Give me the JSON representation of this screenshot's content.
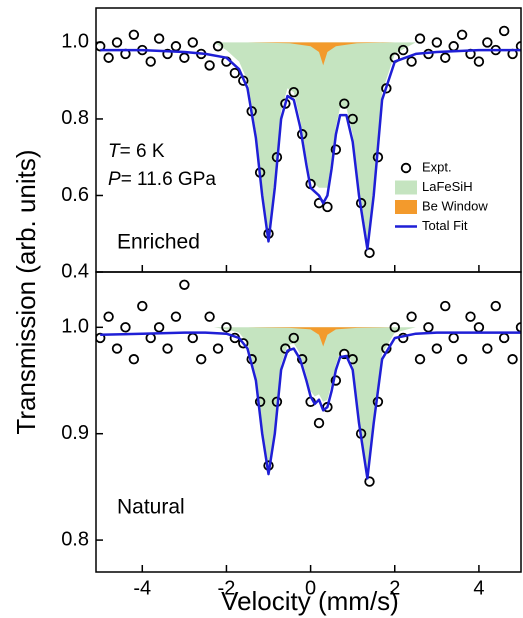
{
  "y_label": "Transmission (arb. units)",
  "x_label": "Velocity (mm/s)",
  "chart_data": [
    {
      "type": "mossbauer",
      "legend": "center right",
      "xlim": [
        -5.1,
        5
      ],
      "ylim": [
        0.4,
        1.09
      ],
      "yticks": [
        0.4,
        0.6,
        0.8,
        {
          "value": 1,
          "label": "1.0"
        }
      ],
      "annotations": [
        "T",
        "= 6 K",
        "P",
        "= 11.6 GPa",
        "Enriched"
      ],
      "series": [
        {
          "name": "Expt.",
          "kind": "scatter",
          "color": "#000000",
          "x": [
            -5,
            -4.8,
            -4.6,
            -4.4,
            -4.2,
            -4,
            -3.8,
            -3.6,
            -3.4,
            -3.2,
            -3,
            -2.8,
            -2.6,
            -2.4,
            -2.2,
            -2,
            -1.8,
            -1.6,
            -1.4,
            -1.2,
            -1,
            -0.8,
            -0.6,
            -0.4,
            -0.2,
            0,
            0.2,
            0.4,
            0.6,
            0.8,
            1,
            1.2,
            1.4,
            1.6,
            1.8,
            2,
            2.2,
            2.4,
            2.6,
            2.8,
            3,
            3.2,
            3.4,
            3.6,
            3.8,
            4,
            4.2,
            4.4,
            4.6,
            4.8,
            5
          ],
          "values": [
            0.99,
            0.96,
            1.0,
            0.97,
            1.02,
            0.98,
            0.95,
            1.01,
            0.97,
            0.99,
            0.96,
            1.0,
            0.97,
            0.94,
            0.99,
            0.95,
            0.92,
            0.9,
            0.82,
            0.66,
            0.5,
            0.7,
            0.84,
            0.87,
            0.76,
            0.63,
            0.58,
            0.57,
            0.72,
            0.84,
            0.8,
            0.58,
            0.45,
            0.7,
            0.88,
            0.96,
            0.98,
            0.95,
            1.01,
            0.97,
            1.0,
            0.96,
            0.99,
            1.02,
            0.97,
            0.95,
            1.0,
            0.98,
            1.03,
            0.97,
            0.99
          ]
        },
        {
          "name": "LaFeSiH",
          "kind": "area",
          "color": "#c5e4c0",
          "x": [
            -2.3,
            -2,
            -1.7,
            -1.5,
            -1.3,
            -1.15,
            -1,
            -0.85,
            -0.7,
            -0.55,
            -0.4,
            -0.25,
            -0.1,
            0,
            0.1,
            0.2,
            0.3,
            0.4,
            0.5,
            0.6,
            0.7,
            0.85,
            1,
            1.15,
            1.35,
            1.5,
            1.7,
            2,
            2.5
          ],
          "values": [
            1.0,
            0.98,
            0.95,
            0.9,
            0.77,
            0.62,
            0.5,
            0.64,
            0.82,
            0.88,
            0.87,
            0.8,
            0.7,
            0.64,
            0.63,
            0.62,
            0.62,
            0.62,
            0.69,
            0.78,
            0.83,
            0.83,
            0.76,
            0.62,
            0.48,
            0.62,
            0.87,
            0.97,
            1.0
          ]
        },
        {
          "name": "Be Window",
          "kind": "area",
          "color": "#f39a2c",
          "x": [
            -1.5,
            -0.5,
            0,
            0.2,
            0.3,
            0.4,
            0.6,
            1.1,
            2
          ],
          "values": [
            1.0,
            0.998,
            0.99,
            0.975,
            0.94,
            0.975,
            0.99,
            0.998,
            1.0
          ]
        },
        {
          "name": "Total Fit",
          "kind": "line",
          "color": "#1f1fd6",
          "x": [
            -5,
            -4,
            -3,
            -2.5,
            -2,
            -1.7,
            -1.5,
            -1.3,
            -1.15,
            -1,
            -0.85,
            -0.7,
            -0.55,
            -0.4,
            -0.25,
            -0.1,
            0,
            0.1,
            0.2,
            0.3,
            0.4,
            0.5,
            0.6,
            0.7,
            0.85,
            1,
            1.15,
            1.35,
            1.5,
            1.7,
            2,
            2.5,
            3,
            4,
            5
          ],
          "values": [
            0.98,
            0.98,
            0.975,
            0.97,
            0.96,
            0.93,
            0.88,
            0.75,
            0.6,
            0.48,
            0.62,
            0.8,
            0.86,
            0.85,
            0.78,
            0.68,
            0.62,
            0.61,
            0.6,
            0.58,
            0.6,
            0.67,
            0.76,
            0.81,
            0.81,
            0.74,
            0.6,
            0.46,
            0.6,
            0.85,
            0.95,
            0.97,
            0.975,
            0.98,
            0.98
          ]
        }
      ]
    },
    {
      "type": "mossbauer",
      "xlim": [
        -5.1,
        5
      ],
      "ylim": [
        0.77,
        1.052
      ],
      "xticks": [
        -4,
        -2,
        0,
        2,
        4
      ],
      "yticks": [
        0.8,
        0.9,
        {
          "value": 1,
          "label": "1.0"
        }
      ],
      "annotations": [
        "Natural"
      ],
      "series": [
        {
          "kind": "scatter",
          "color": "#000000",
          "x": [
            -5,
            -4.8,
            -4.6,
            -4.4,
            -4.2,
            -4,
            -3.8,
            -3.6,
            -3.4,
            -3.2,
            -3,
            -2.8,
            -2.6,
            -2.4,
            -2.2,
            -2,
            -1.8,
            -1.6,
            -1.4,
            -1.2,
            -1,
            -0.8,
            -0.6,
            -0.4,
            -0.2,
            0,
            0.2,
            0.4,
            0.6,
            0.8,
            1,
            1.2,
            1.4,
            1.6,
            1.8,
            2,
            2.2,
            2.4,
            2.6,
            2.8,
            3,
            3.2,
            3.4,
            3.6,
            3.8,
            4,
            4.2,
            4.4,
            4.6,
            4.8,
            5
          ],
          "values": [
            0.99,
            1.01,
            0.98,
            1.0,
            0.97,
            1.02,
            0.99,
            1.0,
            0.98,
            1.01,
            1.04,
            0.99,
            0.97,
            1.01,
            0.98,
            1.0,
            0.99,
            0.985,
            0.97,
            0.93,
            0.87,
            0.93,
            0.98,
            0.99,
            0.97,
            0.93,
            0.91,
            0.925,
            0.95,
            0.975,
            0.97,
            0.9,
            0.855,
            0.93,
            0.98,
            1.0,
            0.99,
            1.01,
            0.97,
            1.0,
            0.98,
            1.02,
            0.99,
            0.97,
            1.01,
            1.0,
            0.98,
            1.02,
            0.99,
            0.97,
            1.0
          ]
        },
        {
          "kind": "area",
          "color": "#c5e4c0",
          "x": [
            -2.3,
            -2,
            -1.7,
            -1.5,
            -1.3,
            -1.15,
            -1,
            -0.85,
            -0.7,
            -0.55,
            -0.4,
            -0.25,
            -0.1,
            0,
            0.1,
            0.2,
            0.3,
            0.4,
            0.5,
            0.6,
            0.7,
            0.85,
            1,
            1.15,
            1.35,
            1.5,
            1.7,
            2,
            2.5
          ],
          "values": [
            1.0,
            0.998,
            0.995,
            0.985,
            0.955,
            0.905,
            0.867,
            0.905,
            0.965,
            0.983,
            0.985,
            0.975,
            0.955,
            0.94,
            0.935,
            0.937,
            0.93,
            0.932,
            0.947,
            0.965,
            0.977,
            0.978,
            0.965,
            0.915,
            0.862,
            0.915,
            0.975,
            0.995,
            1.0
          ]
        },
        {
          "kind": "area",
          "color": "#f39a2c",
          "x": [
            -1.5,
            -0.5,
            0,
            0.2,
            0.3,
            0.4,
            0.6,
            1.1,
            2
          ],
          "values": [
            1.0,
            0.9995,
            0.998,
            0.993,
            0.982,
            0.993,
            0.998,
            0.9995,
            1.0
          ]
        },
        {
          "kind": "line",
          "color": "#1f1fd6",
          "x": [
            -5,
            -4,
            -3,
            -2.5,
            -2,
            -1.7,
            -1.5,
            -1.3,
            -1.15,
            -1,
            -0.85,
            -0.7,
            -0.55,
            -0.4,
            -0.25,
            -0.1,
            0,
            0.1,
            0.2,
            0.3,
            0.4,
            0.5,
            0.6,
            0.7,
            0.85,
            1,
            1.15,
            1.35,
            1.5,
            1.7,
            2,
            2.5,
            3,
            4,
            5
          ],
          "values": [
            0.993,
            0.994,
            0.995,
            0.995,
            0.994,
            0.99,
            0.98,
            0.95,
            0.9,
            0.862,
            0.9,
            0.96,
            0.978,
            0.98,
            0.97,
            0.95,
            0.935,
            0.928,
            0.932,
            0.922,
            0.925,
            0.94,
            0.96,
            0.972,
            0.973,
            0.96,
            0.91,
            0.858,
            0.91,
            0.97,
            0.99,
            0.994,
            0.995,
            0.995,
            0.995
          ]
        }
      ]
    }
  ]
}
